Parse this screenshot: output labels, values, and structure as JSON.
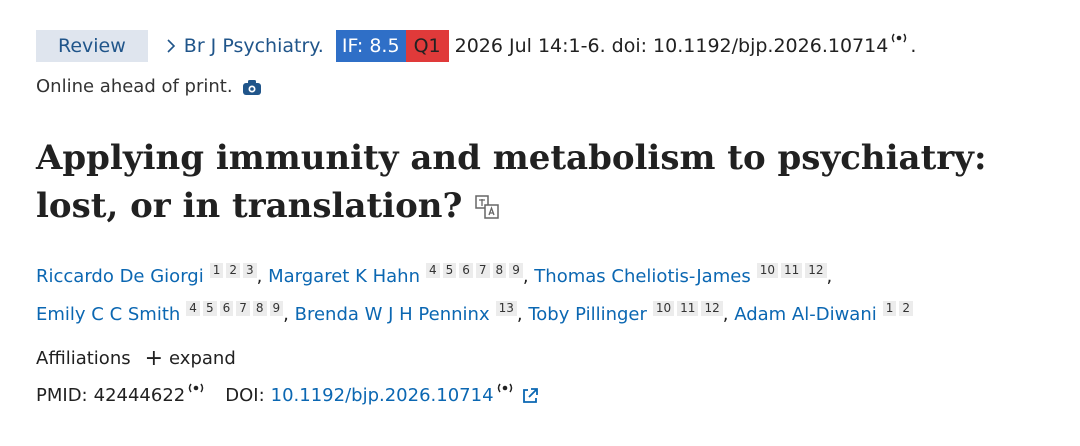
{
  "header": {
    "type_badge": "Review",
    "journal": "Br J Psychiatry.",
    "impact_factor": "IF: 8.5",
    "quartile": "Q1",
    "citation": "2026 Jul 14:1-6. doi: 10.1192/bjp.2026.10714",
    "citation_end": ".",
    "status": "Online ahead of print."
  },
  "title": "Applying immunity and metabolism to psychiatry: lost, or in translation?",
  "authors": [
    {
      "name": "Riccardo De Giorgi",
      "affiliations": [
        "1",
        "2",
        "3"
      ],
      "separator": ","
    },
    {
      "name": "Margaret K Hahn",
      "affiliations": [
        "4",
        "5",
        "6",
        "7",
        "8",
        "9"
      ],
      "separator": ","
    },
    {
      "name": "Thomas Cheliotis-James",
      "affiliations": [
        "10",
        "11",
        "12"
      ],
      "separator": ","
    },
    {
      "name": "Emily C C Smith",
      "affiliations": [
        "4",
        "5",
        "6",
        "7",
        "8",
        "9"
      ],
      "separator": ","
    },
    {
      "name": "Brenda W J H Penninx",
      "affiliations": [
        "13"
      ],
      "separator": ","
    },
    {
      "name": "Toby Pillinger",
      "affiliations": [
        "10",
        "11",
        "12"
      ],
      "separator": ","
    },
    {
      "name": "Adam Al-Diwani",
      "affiliations": [
        "1",
        "2"
      ]
    }
  ],
  "affiliations": {
    "label": "Affiliations",
    "toggle_icon": "+",
    "toggle": "expand"
  },
  "identifiers": {
    "pmid_label": "PMID:",
    "pmid": "42444622",
    "doi_label": "DOI:",
    "doi": "10.1192/bjp.2026.10714"
  }
}
